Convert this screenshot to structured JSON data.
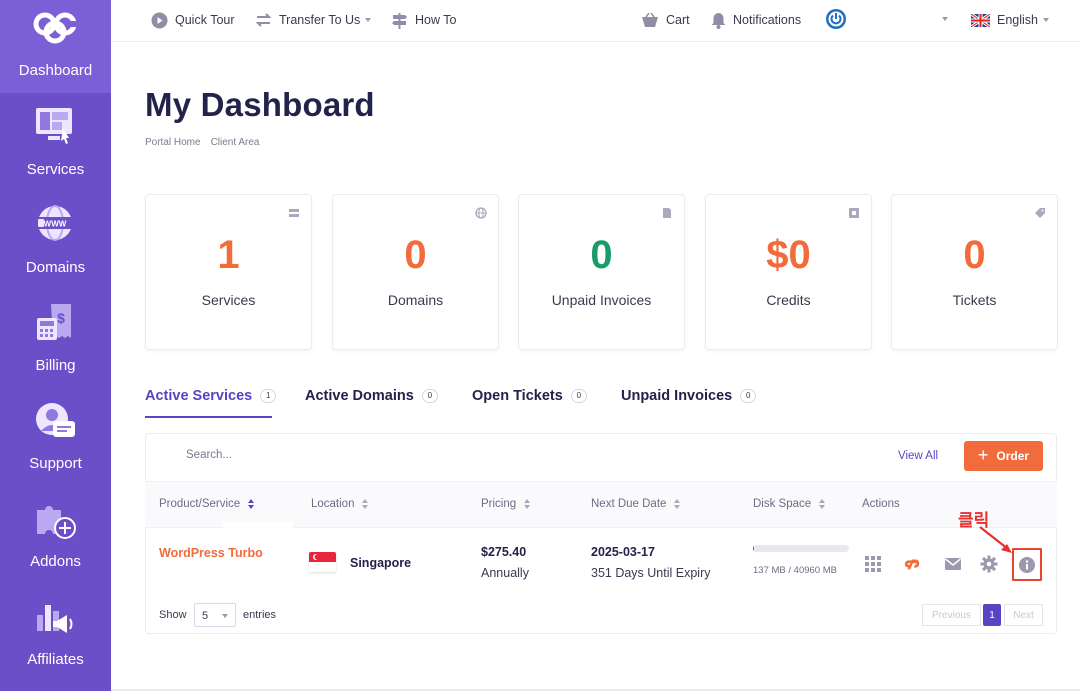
{
  "sidebar": {
    "items": [
      {
        "label": "Dashboard",
        "icon": "logo-icon"
      },
      {
        "label": "Services",
        "icon": "monitor-icon"
      },
      {
        "label": "Domains",
        "icon": "www-globe-icon"
      },
      {
        "label": "Billing",
        "icon": "calculator-invoice-icon"
      },
      {
        "label": "Support",
        "icon": "support-agent-icon"
      },
      {
        "label": "Addons",
        "icon": "puzzle-plus-icon"
      },
      {
        "label": "Affiliates",
        "icon": "chart-megaphone-icon"
      }
    ]
  },
  "topbar": {
    "quick_tour": "Quick Tour",
    "transfer": "Transfer To Us",
    "how_to": "How To",
    "cart": "Cart",
    "notifications": "Notifications",
    "language": "English"
  },
  "header": {
    "title": "My Dashboard",
    "breadcrumb": [
      "Portal Home",
      "Client Area"
    ]
  },
  "stats": [
    {
      "value": "1",
      "label": "Services",
      "color": "#f26b3a",
      "icon": "server-icon"
    },
    {
      "value": "0",
      "label": "Domains",
      "color": "#f26b3a",
      "icon": "globe-icon"
    },
    {
      "value": "0",
      "label": "Unpaid Invoices",
      "color": "#1a9b6a",
      "icon": "document-icon"
    },
    {
      "value": "$0",
      "label": "Credits",
      "color": "#f26b3a",
      "icon": "credit-icon"
    },
    {
      "value": "0",
      "label": "Tickets",
      "color": "#f26b3a",
      "icon": "tag-icon"
    }
  ],
  "tabs": [
    {
      "label": "Active Services",
      "count": "1"
    },
    {
      "label": "Active Domains",
      "count": "0"
    },
    {
      "label": "Open Tickets",
      "count": "0"
    },
    {
      "label": "Unpaid Invoices",
      "count": "0"
    }
  ],
  "table": {
    "search_placeholder": "Search...",
    "view_all": "View All",
    "order": "Order",
    "columns": [
      "Product/Service",
      "Location",
      "Pricing",
      "Next Due Date",
      "Disk Space",
      "Actions"
    ],
    "rows": [
      {
        "product": "WordPress Turbo",
        "location": "Singapore",
        "price": "$275.40",
        "cycle": "Annually",
        "due": "2025-03-17",
        "expiry": "351 Days Until Expiry",
        "disk_used_fraction": 0.003,
        "disk_text": "137 MB / 40960 MB"
      }
    ],
    "show": "Show",
    "page_size": "5",
    "entries": "entries",
    "pagination": {
      "previous": "Previous",
      "current": "1",
      "next": "Next"
    }
  },
  "annotation": {
    "text": "클릭",
    "color": "#e8302f"
  },
  "colors": {
    "sidebar": "#6a4fc9",
    "accent": "#5b44c4",
    "orange": "#f26b3a",
    "green": "#1a9b6a"
  }
}
